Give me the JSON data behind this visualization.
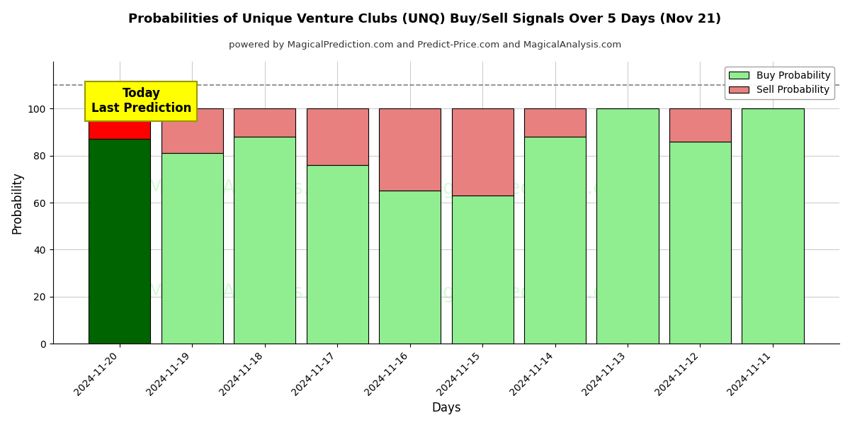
{
  "title": "Probabilities of Unique Venture Clubs (UNQ) Buy/Sell Signals Over 5 Days (Nov 21)",
  "subtitle": "powered by MagicalPrediction.com and Predict-Price.com and MagicalAnalysis.com",
  "xlabel": "Days",
  "ylabel": "Probability",
  "dates": [
    "2024-11-20",
    "2024-11-19",
    "2024-11-18",
    "2024-11-17",
    "2024-11-16",
    "2024-11-15",
    "2024-11-14",
    "2024-11-13",
    "2024-11-12",
    "2024-11-11"
  ],
  "buy_values": [
    87,
    81,
    88,
    76,
    65,
    63,
    88,
    100,
    86,
    100
  ],
  "sell_values": [
    13,
    19,
    12,
    24,
    35,
    37,
    12,
    0,
    14,
    0
  ],
  "today_bar_buy_color": "#006400",
  "today_bar_sell_color": "#FF0000",
  "buy_color": "#90EE90",
  "sell_color": "#E88080",
  "today_annotation_bg": "#FFFF00",
  "today_annotation_text": "Today\nLast Prediction",
  "dashed_line_y": 110,
  "ylim": [
    0,
    120
  ],
  "yticks": [
    0,
    20,
    40,
    60,
    80,
    100
  ],
  "background_color": "#FFFFFF",
  "grid_color": "#CCCCCC",
  "bar_edge_color": "#000000",
  "bar_width": 0.85
}
